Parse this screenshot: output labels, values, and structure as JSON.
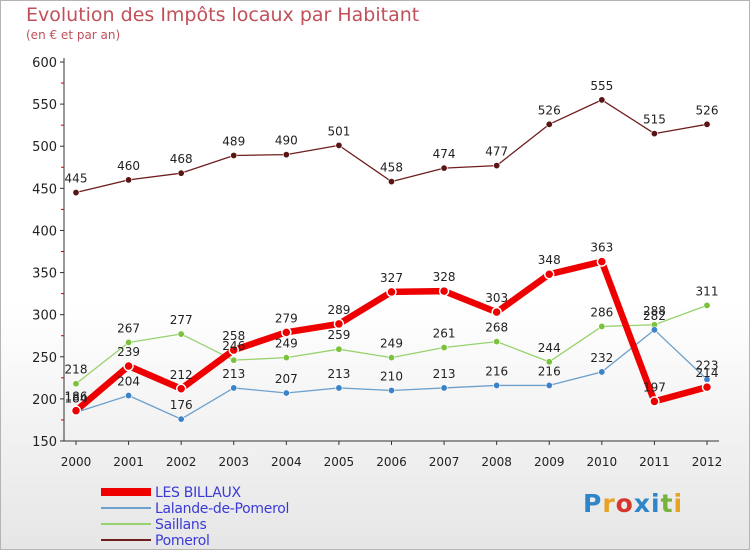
{
  "title": "Evolution des Impôts locaux par Habitant",
  "subtitle": "(en € et par an)",
  "logo": {
    "text": "Proxiti",
    "colors": [
      "#2e86c8",
      "#e8a224",
      "#d8362c",
      "#2e86c8",
      "#2e86c8",
      "#78b43c",
      "#e8a224"
    ]
  },
  "chart_data": {
    "type": "line",
    "title": "Evolution des Impôts locaux par Habitant",
    "subtitle": "(en € et par an)",
    "xlabel": "",
    "ylabel": "",
    "ylim": [
      150,
      600
    ],
    "yticks": [
      150,
      200,
      250,
      300,
      350,
      400,
      450,
      500,
      550,
      600
    ],
    "grid": false,
    "legend_position": "bottom-left",
    "x": [
      "2000",
      "2001",
      "2002",
      "2003",
      "2004",
      "2005",
      "2006",
      "2007",
      "2008",
      "2009",
      "2010",
      "2011",
      "2012"
    ],
    "series": [
      {
        "name": "Pomerol",
        "color": "#6e1e1e",
        "marker": "#5a1414",
        "values": [
          445,
          460,
          468,
          489,
          490,
          501,
          458,
          474,
          477,
          526,
          555,
          515,
          526
        ],
        "labels": [
          "445",
          "460",
          "468",
          "489",
          "490",
          "501",
          "458",
          "474",
          "477",
          "526",
          "555",
          "515",
          "526"
        ]
      },
      {
        "name": "Saillans",
        "color": "#98d26e",
        "marker": "#7ac23c",
        "values": [
          218,
          267,
          277,
          246,
          249,
          259,
          249,
          261,
          268,
          244,
          286,
          288,
          311
        ],
        "labels": [
          "218",
          "267",
          "277",
          "246",
          "249",
          "259",
          "249",
          "261",
          "268",
          "244",
          "286",
          "288",
          "311"
        ]
      },
      {
        "name": "Lalande-de-Pomerol",
        "color": "#6ea0cc",
        "marker": "#3c82c8",
        "values": [
          184,
          204,
          176,
          213,
          207,
          213,
          210,
          213,
          216,
          216,
          232,
          282,
          223
        ],
        "labels": [
          "184",
          "204",
          "176",
          "213",
          "207",
          "213",
          "210",
          "213",
          "216",
          "216",
          "232",
          "282",
          "223"
        ]
      },
      {
        "name": "LES BILLAUX",
        "color": "#ee0000",
        "marker": "#ee0000",
        "values": [
          186,
          239,
          212,
          258,
          279,
          289,
          327,
          328,
          303,
          348,
          363,
          197,
          214
        ],
        "labels": [
          "186",
          "239",
          "212",
          "258",
          "279",
          "289",
          "327",
          "328",
          "303",
          "348",
          "363",
          "197",
          "214"
        ]
      }
    ],
    "legend": [
      "LES BILLAUX",
      "Lalande-de-Pomerol",
      "Saillans",
      "Pomerol"
    ]
  }
}
